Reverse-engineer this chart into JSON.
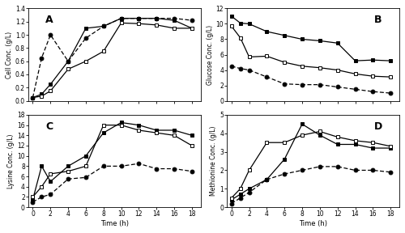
{
  "time": [
    0,
    1,
    2,
    4,
    6,
    8,
    10,
    12,
    14,
    16,
    18
  ],
  "A_ANN": [
    0.05,
    0.1,
    0.25,
    0.6,
    1.1,
    1.13,
    1.25,
    1.25,
    1.25,
    1.22,
    1.1
  ],
  "A_RSM": [
    0.05,
    0.07,
    0.15,
    0.48,
    0.6,
    0.75,
    1.18,
    1.17,
    1.15,
    1.1,
    1.1
  ],
  "A_OFAT": [
    0.05,
    0.65,
    1.0,
    0.6,
    0.95,
    1.13,
    1.25,
    1.25,
    1.25,
    1.25,
    1.22
  ],
  "B_ANN": [
    11.0,
    10.1,
    10.0,
    9.0,
    8.5,
    8.0,
    7.8,
    7.5,
    5.2,
    5.3,
    5.2
  ],
  "B_RSM": [
    9.7,
    8.2,
    5.7,
    5.8,
    5.0,
    4.5,
    4.3,
    4.0,
    3.5,
    3.2,
    3.1
  ],
  "B_OFAT": [
    4.5,
    4.2,
    4.0,
    3.1,
    2.2,
    2.1,
    2.1,
    1.8,
    1.5,
    1.2,
    1.0
  ],
  "C_ANN": [
    1.5,
    8.0,
    5.0,
    8.0,
    10.0,
    14.5,
    16.5,
    16.0,
    15.0,
    15.0,
    14.0
  ],
  "C_RSM": [
    2.0,
    4.0,
    6.5,
    7.0,
    8.0,
    16.0,
    16.0,
    15.0,
    14.5,
    14.0,
    12.0
  ],
  "C_OFAT": [
    1.0,
    2.0,
    2.5,
    5.5,
    5.8,
    8.0,
    8.0,
    8.5,
    7.5,
    7.5,
    7.0
  ],
  "D_ANN": [
    0.4,
    0.7,
    1.0,
    1.5,
    2.6,
    4.5,
    3.9,
    3.4,
    3.4,
    3.2,
    3.2
  ],
  "D_RSM": [
    0.5,
    1.0,
    2.0,
    3.5,
    3.5,
    3.9,
    4.1,
    3.8,
    3.6,
    3.5,
    3.3
  ],
  "D_OFAT": [
    0.2,
    0.5,
    0.8,
    1.5,
    1.8,
    2.0,
    2.2,
    2.2,
    2.0,
    2.0,
    1.9
  ],
  "A_ylim": [
    0,
    1.4
  ],
  "A_yticks": [
    0,
    0.2,
    0.4,
    0.6,
    0.8,
    1.0,
    1.2,
    1.4
  ],
  "B_ylim": [
    0,
    12
  ],
  "B_yticks": [
    0,
    2,
    4,
    6,
    8,
    10,
    12
  ],
  "C_ylim": [
    0,
    18
  ],
  "C_yticks": [
    0,
    2,
    4,
    6,
    8,
    10,
    12,
    14,
    16,
    18
  ],
  "D_ylim": [
    0,
    5
  ],
  "D_yticks": [
    0,
    1,
    2,
    3,
    4,
    5
  ],
  "xticks": [
    0,
    2,
    4,
    6,
    8,
    10,
    12,
    14,
    16,
    18
  ],
  "A_ylabel": "Cell Conc. (g/L)",
  "B_ylabel": "Glucose Conc. (g/L)",
  "C_ylabel": "Lysine Conc. (g/L)",
  "D_ylabel": "Methionine Conc. (g/L)",
  "xlabel": "Time (h)"
}
